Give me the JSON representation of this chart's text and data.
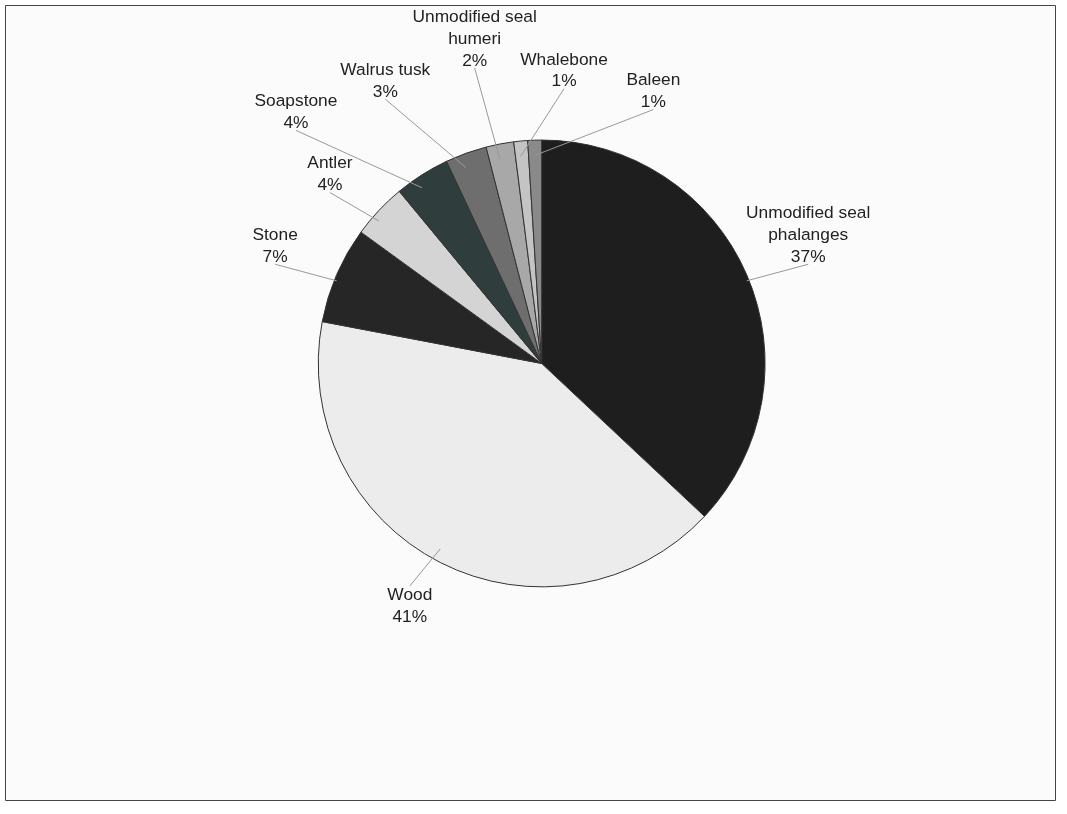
{
  "chart_data": {
    "type": "pie",
    "categories": [
      "Unmodified seal phalanges",
      "Wood",
      "Stone",
      "Antler",
      "Soapstone",
      "Walrus tusk",
      "Unmodified seal humeri",
      "Whalebone",
      "Baleen"
    ],
    "values": [
      37,
      41,
      7,
      4,
      4,
      3,
      2,
      1,
      1
    ],
    "value_labels": [
      "37%",
      "41%",
      "7%",
      "4%",
      "4%",
      "3%",
      "2%",
      "1%",
      "1%"
    ],
    "colors": [
      "#1e1e1e",
      "#ececec",
      "#262626",
      "#d4d4d4",
      "#2f3d3d",
      "#6e6e6e",
      "#a8a8a8",
      "#c4c4c4",
      "#8a8a8a"
    ]
  }
}
